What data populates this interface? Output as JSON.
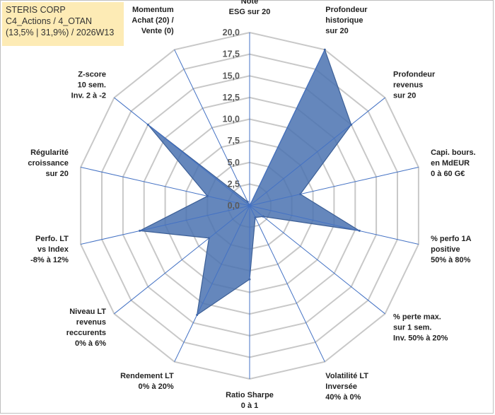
{
  "header": {
    "line1": "STERIS CORP",
    "line2": "C4_Actions / 4_OTAN",
    "line3": "(13,5% | 31,9%) / 2026W13"
  },
  "colors": {
    "fill": "#4a72b0",
    "stroke": "#3c5f96",
    "grid": "#c8c8c8",
    "axis": "#4472c4",
    "title_bg": "#fdebb5"
  },
  "chart_data": {
    "type": "radar",
    "title": "STERIS CORP",
    "rmin": 0,
    "rmax": 20,
    "tick_step": 2.5,
    "tick_labels": [
      "0,0",
      "2,5",
      "5,0",
      "7,5",
      "10,0",
      "12,5",
      "15,0",
      "17,5",
      "20,0"
    ],
    "categories": [
      [
        "Note",
        "ESG sur 20"
      ],
      [
        "Profondeur",
        "historique",
        "sur 20"
      ],
      [
        "Profondeur",
        "revenus",
        "sur 20"
      ],
      [
        "Capi. bours.",
        "en MdEUR",
        "0 à 60 G€"
      ],
      [
        "% perfo 1A",
        "positive",
        "50% à 80%"
      ],
      [
        "% perte max.",
        "sur 1 sem.",
        "Inv. 50% à 20%"
      ],
      [
        "Volatilité LT",
        "Inversée",
        "40% à 0%"
      ],
      [
        "Ratio Sharpe",
        "0 à 1"
      ],
      [
        "Rendement LT",
        "0% à 20%"
      ],
      [
        "Niveau LT",
        "revenus",
        "reccurents",
        "0% à 6%"
      ],
      [
        "Perfo. LT",
        "vs Index",
        "-8% à 12%"
      ],
      [
        "Régularité",
        "croissance",
        "sur 20"
      ],
      [
        "Z-score",
        "10 sem.",
        "Inv. 2 à -2"
      ],
      [
        "Momentum",
        "Achat (20) /",
        "Vente (0)"
      ]
    ],
    "series": [
      {
        "name": "STERIS CORP",
        "values": [
          0,
          20,
          15,
          6,
          13,
          2,
          1.5,
          8.5,
          14,
          6,
          13,
          5,
          15,
          0.5
        ]
      }
    ]
  }
}
